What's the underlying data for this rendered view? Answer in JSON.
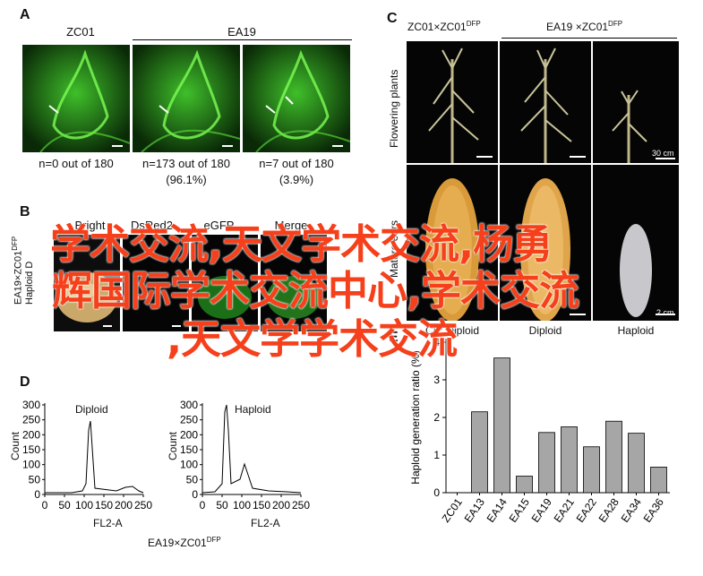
{
  "panelA": {
    "letter": "A",
    "header_left": "ZC01",
    "header_right": "EA19",
    "captions": [
      {
        "line1": "n=0 out of 180",
        "line2": ""
      },
      {
        "line1": "n=173 out of 180",
        "line2": "(96.1%)"
      },
      {
        "line1": "n=7 out of 180",
        "line2": "(3.9%)"
      }
    ]
  },
  "panelB": {
    "letter": "B",
    "columns": [
      "Bright",
      "DsRed2",
      "eGFP",
      "Merge"
    ],
    "side_label": "EA19×ZC01",
    "side_label_sup": "DFP",
    "side_label2": "Haploid D"
  },
  "panelC": {
    "letter": "C",
    "header_left": "ZC01×ZC01",
    "header_left_sup": "DFP",
    "header_right": "EA19 ×ZC01",
    "header_right_sup": "DFP",
    "row1_label": "Flowering plants",
    "row2_label": "Mature ears",
    "scale1": "30 cm",
    "scale2": "2 cm",
    "captions": [
      "CK: Diploid",
      "Diploid",
      "Haploid"
    ]
  },
  "panelD": {
    "letter": "D",
    "left_title": "Diploid",
    "right_title": "Haploid",
    "ylabel": "Count",
    "xlabel": "FL2-A",
    "yticks": [
      "0",
      "50",
      "100",
      "150",
      "200",
      "250",
      "300"
    ],
    "xticks": [
      "0",
      "50",
      "100",
      "150",
      "200",
      "250"
    ],
    "footer": "EA19×ZC01",
    "footer_sup": "DFP"
  },
  "panelE": {
    "letter": "E"
  },
  "chart_data": {
    "type": "bar",
    "title": "",
    "xlabel": "",
    "ylabel": "Haploid generation ratio (%)",
    "ylim": [
      0,
      4
    ],
    "yticks": [
      "0",
      "1",
      "2",
      "3",
      "4"
    ],
    "categories": [
      "ZC01",
      "EA13",
      "EA14",
      "EA15",
      "EA19",
      "EA21",
      "EA22",
      "EA28",
      "EA34",
      "EA36"
    ],
    "values": [
      0,
      2.15,
      3.58,
      0.44,
      1.6,
      1.75,
      1.22,
      1.9,
      1.58,
      0.68
    ],
    "bar_color": "#a6a6a6"
  },
  "overlay": {
    "line1": "学术交流,天文学术交流,杨勇",
    "line2": "辉国际学术交流中心,学术交流",
    "line3": ",天文学学术交流",
    "color": "#f5401b"
  }
}
